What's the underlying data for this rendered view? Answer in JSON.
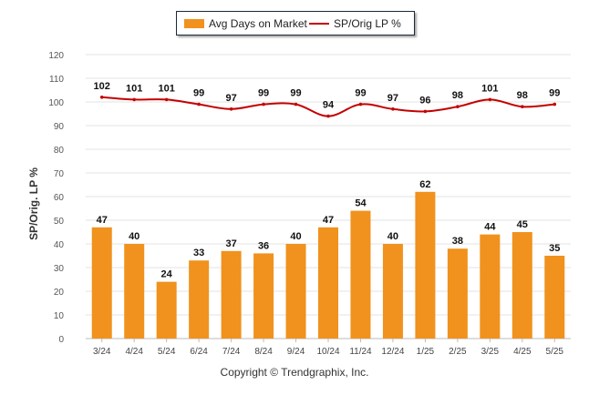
{
  "legend": {
    "bar_label": "Avg Days on Market",
    "line_label": "SP/Orig LP %"
  },
  "ylabel": "SP/Orig. LP %",
  "copyright": "Copyright © Trendgraphix, Inc.",
  "colors": {
    "bar": "#f0921d",
    "line": "#c40000",
    "grid": "#e3e3e3"
  },
  "chart_data": {
    "type": "bar",
    "categories": [
      "3/24",
      "4/24",
      "5/24",
      "6/24",
      "7/24",
      "8/24",
      "9/24",
      "10/24",
      "11/24",
      "12/24",
      "1/25",
      "2/25",
      "3/25",
      "4/25",
      "5/25"
    ],
    "series": [
      {
        "name": "Avg Days on Market",
        "type": "bar",
        "values": [
          47,
          40,
          24,
          33,
          37,
          36,
          40,
          47,
          54,
          40,
          62,
          38,
          44,
          45,
          35
        ]
      },
      {
        "name": "SP/Orig LP %",
        "type": "line",
        "values": [
          102,
          101,
          101,
          99,
          97,
          99,
          99,
          94,
          99,
          97,
          96,
          98,
          101,
          98,
          99
        ]
      }
    ],
    "ylabel": "SP/Orig. LP %",
    "ylim": [
      0,
      120
    ],
    "yticks": [
      0,
      10,
      20,
      30,
      40,
      50,
      60,
      70,
      80,
      90,
      100,
      110,
      120
    ],
    "grid": true,
    "legend_position": "top-center"
  }
}
